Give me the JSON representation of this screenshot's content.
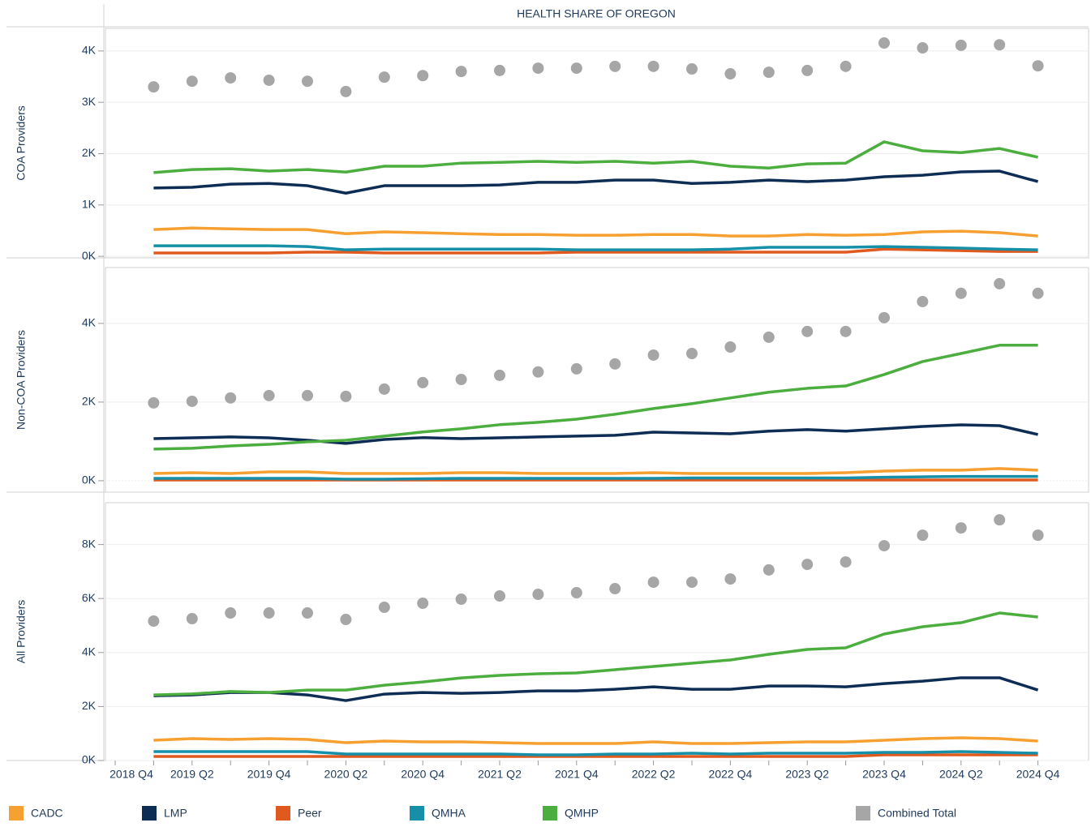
{
  "chart_data": {
    "type": "line",
    "title": "HEALTH SHARE OF OREGON",
    "categories": [
      "2018 Q4",
      null,
      "2019 Q2",
      null,
      "2019 Q4",
      null,
      "2020 Q2",
      null,
      "2020 Q4",
      null,
      "2021 Q2",
      null,
      "2021 Q4",
      null,
      "2022 Q2",
      null,
      "2022 Q4",
      null,
      "2023 Q2",
      null,
      "2023 Q4",
      null,
      "2024 Q2",
      null,
      "2024 Q4"
    ],
    "grid": true,
    "legend_position": "bottom",
    "series": [
      {
        "name": "CADC",
        "color": "#f5a031",
        "style": "line"
      },
      {
        "name": "LMP",
        "color": "#0e2d55",
        "style": "line"
      },
      {
        "name": "Peer",
        "color": "#e05a1f",
        "style": "line"
      },
      {
        "name": "QMHA",
        "color": "#1690a8",
        "style": "line"
      },
      {
        "name": "QMHP",
        "color": "#4cae3f",
        "style": "line"
      },
      {
        "name": "Combined Total",
        "color": "#a6a6a6",
        "style": "markers"
      }
    ],
    "panels": [
      {
        "ylabel": "COA Providers",
        "ylim": [
          -30,
          4440
        ],
        "yticks": [
          {
            "value": 0,
            "label": "0K"
          },
          {
            "value": 1000,
            "label": "1K"
          },
          {
            "value": 2000,
            "label": "2K"
          },
          {
            "value": 3000,
            "label": "3K"
          },
          {
            "value": 4000,
            "label": "4K"
          }
        ],
        "series": [
          {
            "values": [
              null,
              520,
              550,
              535,
              520,
              520,
              440,
              475,
              460,
              440,
              425,
              425,
              410,
              410,
              425,
              425,
              395,
              395,
              425,
              410,
              425,
              475,
              490,
              460,
              395
            ]
          },
          {
            "values": [
              null,
              1330,
              1345,
              1405,
              1420,
              1375,
              1230,
              1375,
              1375,
              1375,
              1390,
              1440,
              1440,
              1485,
              1485,
              1420,
              1440,
              1485,
              1455,
              1485,
              1550,
              1580,
              1645,
              1660,
              1455
            ]
          },
          {
            "values": [
              null,
              65,
              65,
              65,
              65,
              80,
              80,
              65,
              65,
              65,
              65,
              65,
              80,
              80,
              80,
              80,
              80,
              80,
              80,
              80,
              140,
              125,
              110,
              95,
              95
            ]
          },
          {
            "values": [
              null,
              205,
              205,
              205,
              205,
              190,
              125,
              140,
              140,
              140,
              140,
              140,
              125,
              125,
              125,
              125,
              140,
              175,
              175,
              175,
              190,
              175,
              160,
              140,
              125
            ]
          },
          {
            "values": [
              null,
              1630,
              1690,
              1705,
              1660,
              1690,
              1640,
              1755,
              1755,
              1815,
              1830,
              1850,
              1830,
              1850,
              1815,
              1850,
              1755,
              1720,
              1800,
              1815,
              2230,
              2055,
              2020,
              2100,
              1930
            ]
          },
          {
            "values": [
              null,
              3300,
              3410,
              3475,
              3430,
              3410,
              3210,
              3490,
              3520,
              3600,
              3620,
              3665,
              3665,
              3700,
              3700,
              3650,
              3555,
              3585,
              3620,
              3700,
              4155,
              4060,
              4110,
              4120,
              3710
            ]
          }
        ]
      },
      {
        "ylabel": "Non-COA Providers",
        "ylim": [
          -290,
          5420
        ],
        "yticks": [
          {
            "value": 0,
            "label": "0K"
          },
          {
            "value": 2000,
            "label": "2K"
          },
          {
            "value": 4000,
            "label": "4K"
          }
        ],
        "series": [
          {
            "values": [
              null,
              185,
              205,
              185,
              225,
              225,
              185,
              185,
              185,
              205,
              205,
              185,
              185,
              185,
              205,
              185,
              185,
              185,
              185,
              205,
              245,
              270,
              270,
              310,
              270
            ]
          },
          {
            "values": [
              null,
              1070,
              1090,
              1115,
              1090,
              1030,
              950,
              1050,
              1095,
              1070,
              1090,
              1115,
              1135,
              1155,
              1235,
              1215,
              1195,
              1260,
              1300,
              1260,
              1320,
              1380,
              1420,
              1400,
              1175
            ]
          },
          {
            "values": [
              null,
              20,
              20,
              20,
              20,
              20,
              20,
              20,
              20,
              20,
              20,
              20,
              20,
              20,
              20,
              20,
              20,
              20,
              20,
              20,
              20,
              20,
              20,
              20,
              20
            ]
          },
          {
            "values": [
              null,
              60,
              60,
              60,
              60,
              60,
              40,
              40,
              50,
              60,
              60,
              60,
              60,
              60,
              60,
              70,
              70,
              70,
              70,
              70,
              90,
              100,
              110,
              110,
              110
            ]
          },
          {
            "values": [
              null,
              805,
              825,
              885,
              925,
              990,
              1030,
              1135,
              1240,
              1320,
              1425,
              1485,
              1565,
              1690,
              1835,
              1960,
              2105,
              2250,
              2350,
              2410,
              2700,
              3030,
              3235,
              3445,
              3445
            ]
          },
          {
            "values": [
              null,
              1980,
              2020,
              2105,
              2165,
              2165,
              2145,
              2330,
              2495,
              2575,
              2680,
              2765,
              2845,
              2970,
              3195,
              3235,
              3400,
              3650,
              3795,
              3795,
              4145,
              4555,
              4765,
              5010,
              4765
            ]
          }
        ]
      },
      {
        "ylabel": "All Providers",
        "ylim": [
          0,
          9550
        ],
        "yticks": [
          {
            "value": 0,
            "label": "0K"
          },
          {
            "value": 2000,
            "label": "2K"
          },
          {
            "value": 4000,
            "label": "4K"
          },
          {
            "value": 6000,
            "label": "6K"
          },
          {
            "value": 8000,
            "label": "8K"
          }
        ],
        "series": [
          {
            "values": [
              null,
              750,
              810,
              780,
              810,
              780,
              660,
              720,
              690,
              690,
              660,
              630,
              630,
              630,
              690,
              630,
              630,
              660,
              690,
              690,
              750,
              810,
              840,
              810,
              720
            ]
          },
          {
            "values": [
              null,
              2400,
              2430,
              2520,
              2520,
              2430,
              2220,
              2460,
              2520,
              2490,
              2520,
              2580,
              2580,
              2640,
              2730,
              2640,
              2640,
              2760,
              2760,
              2730,
              2850,
              2940,
              3065,
              3065,
              2610
            ]
          },
          {
            "values": [
              null,
              150,
              150,
              150,
              150,
              150,
              150,
              150,
              150,
              150,
              150,
              150,
              150,
              150,
              150,
              150,
              150,
              150,
              150,
              150,
              210,
              210,
              210,
              210,
              210
            ]
          },
          {
            "values": [
              null,
              330,
              330,
              330,
              330,
              330,
              240,
              240,
              240,
              240,
              240,
              210,
              210,
              240,
              240,
              270,
              240,
              270,
              270,
              270,
              300,
              300,
              330,
              300,
              270
            ]
          },
          {
            "values": [
              null,
              2430,
              2465,
              2555,
              2520,
              2610,
              2610,
              2790,
              2910,
              3060,
              3155,
              3215,
              3245,
              3365,
              3485,
              3605,
              3725,
              3935,
              4115,
              4175,
              4685,
              4955,
              5105,
              5465,
              5315
            ]
          },
          {
            "values": [
              null,
              5165,
              5255,
              5465,
              5465,
              5465,
              5225,
              5675,
              5825,
              5975,
              6095,
              6155,
              6215,
              6365,
              6605,
              6605,
              6725,
              7060,
              7265,
              7355,
              7955,
              8345,
              8615,
              8915,
              8345
            ]
          }
        ]
      }
    ]
  }
}
